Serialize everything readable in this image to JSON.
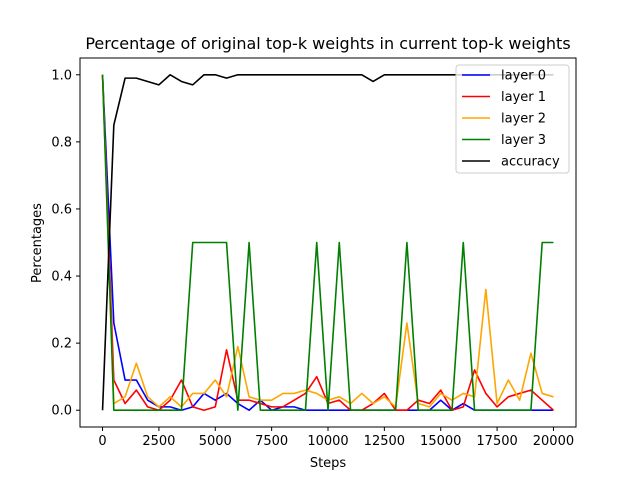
{
  "chart_data": {
    "type": "line",
    "title": "Percentage of original top-k weights in current top-k weights",
    "xlabel": "Steps",
    "ylabel": "Percentages",
    "xlim": [
      -1000,
      21000
    ],
    "ylim": [
      -0.05,
      1.05
    ],
    "xticks": [
      0,
      2500,
      5000,
      7500,
      10000,
      12500,
      15000,
      17500,
      20000
    ],
    "xtick_labels": [
      "0",
      "2500",
      "5000",
      "7500",
      "10000",
      "12500",
      "15000",
      "17500",
      "20000"
    ],
    "yticks": [
      0.0,
      0.2,
      0.4,
      0.6,
      0.8,
      1.0
    ],
    "ytick_labels": [
      "0.0",
      "0.2",
      "0.4",
      "0.6",
      "0.8",
      "1.0"
    ],
    "grid": false,
    "legend_position": "top-right",
    "x": [
      0,
      500,
      1000,
      1500,
      2000,
      2500,
      3000,
      3500,
      4000,
      4500,
      5000,
      5500,
      6000,
      6500,
      7000,
      7500,
      8000,
      8500,
      9000,
      9500,
      10000,
      10500,
      11000,
      11500,
      12000,
      12500,
      13000,
      13500,
      14000,
      14500,
      15000,
      15500,
      16000,
      16500,
      17000,
      17500,
      18000,
      18500,
      19000,
      19500,
      20000
    ],
    "series": [
      {
        "name": "layer 0",
        "color": "#0000ff",
        "values": [
          1.0,
          0.26,
          0.09,
          0.09,
          0.03,
          0.01,
          0.01,
          0.0,
          0.01,
          0.05,
          0.03,
          0.05,
          0.02,
          0.0,
          0.03,
          0.0,
          0.01,
          0.01,
          0.0,
          0.0,
          0.0,
          0.0,
          0.0,
          0.0,
          0.0,
          0.0,
          0.0,
          0.0,
          0.0,
          0.0,
          0.03,
          0.0,
          0.02,
          0.0,
          0.0,
          0.0,
          0.0,
          0.0,
          0.0,
          0.0,
          0.0
        ]
      },
      {
        "name": "layer 1",
        "color": "#ff0000",
        "values": [
          1.0,
          0.09,
          0.02,
          0.06,
          0.01,
          0.0,
          0.03,
          0.09,
          0.01,
          0.0,
          0.01,
          0.18,
          0.03,
          0.03,
          0.02,
          0.01,
          0.01,
          0.03,
          0.05,
          0.1,
          0.02,
          0.03,
          0.0,
          0.0,
          0.02,
          0.05,
          0.0,
          0.0,
          0.03,
          0.02,
          0.06,
          0.0,
          0.01,
          0.12,
          0.05,
          0.01,
          0.04,
          0.05,
          0.06,
          0.03,
          0.0
        ]
      },
      {
        "name": "layer 2",
        "color": "#ffa500",
        "values": [
          1.0,
          0.02,
          0.04,
          0.14,
          0.04,
          0.01,
          0.04,
          0.01,
          0.05,
          0.05,
          0.09,
          0.04,
          0.19,
          0.04,
          0.03,
          0.03,
          0.05,
          0.05,
          0.06,
          0.05,
          0.03,
          0.04,
          0.02,
          0.05,
          0.02,
          0.04,
          0.01,
          0.26,
          0.02,
          0.01,
          0.05,
          0.03,
          0.05,
          0.04,
          0.36,
          0.02,
          0.09,
          0.03,
          0.17,
          0.05,
          0.04
        ]
      },
      {
        "name": "layer 3",
        "color": "#008000",
        "values": [
          1.0,
          0.0,
          0.0,
          0.0,
          0.0,
          0.0,
          0.0,
          0.0,
          0.5,
          0.5,
          0.5,
          0.5,
          0.0,
          0.5,
          0.0,
          0.0,
          0.0,
          0.0,
          0.0,
          0.5,
          0.0,
          0.5,
          0.0,
          0.0,
          0.0,
          0.0,
          0.0,
          0.5,
          0.0,
          0.0,
          0.0,
          0.0,
          0.5,
          0.0,
          0.0,
          0.0,
          0.0,
          0.0,
          0.0,
          0.5,
          0.5
        ]
      },
      {
        "name": "accuracy",
        "color": "#000000",
        "values": [
          0.0,
          0.85,
          0.99,
          0.99,
          0.98,
          0.97,
          1.0,
          0.98,
          0.97,
          1.0,
          1.0,
          0.99,
          1.0,
          1.0,
          1.0,
          1.0,
          1.0,
          1.0,
          1.0,
          1.0,
          1.0,
          1.0,
          1.0,
          1.0,
          0.98,
          1.0,
          1.0,
          1.0,
          1.0,
          1.0,
          1.0,
          1.0,
          1.0,
          1.0,
          1.0,
          1.0,
          1.0,
          1.0,
          1.0,
          1.0,
          1.0
        ]
      }
    ]
  }
}
